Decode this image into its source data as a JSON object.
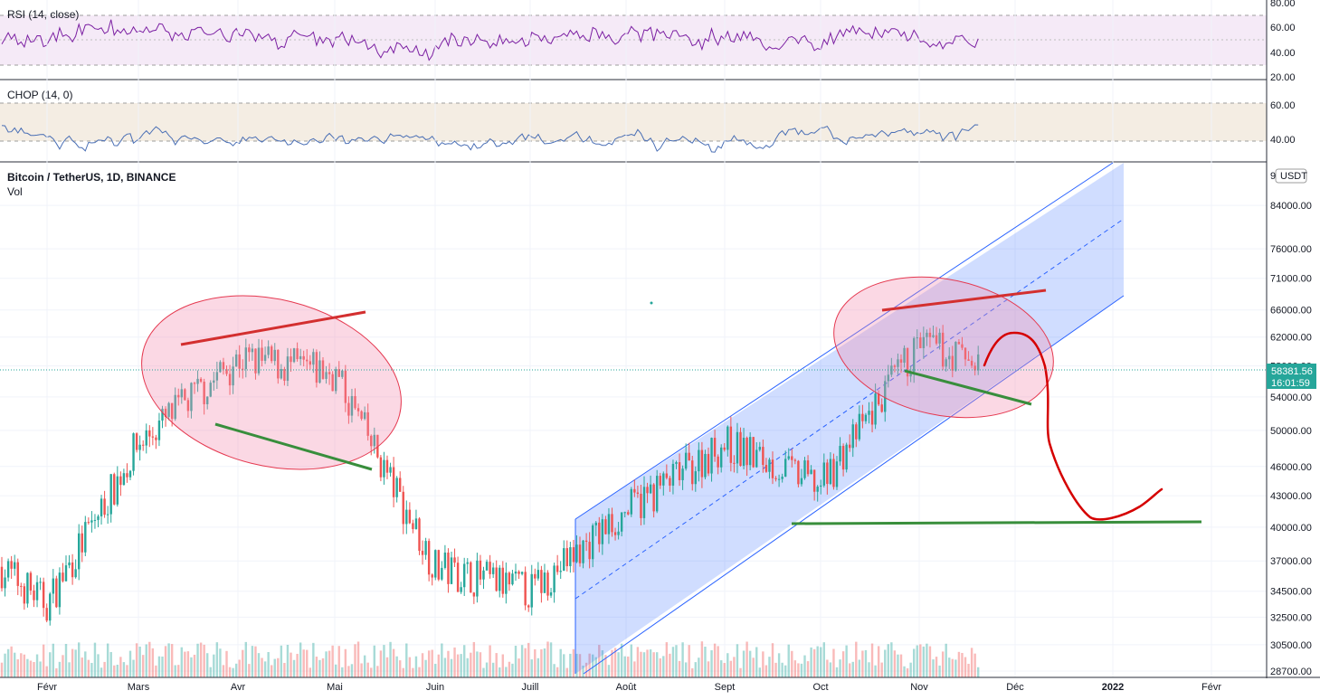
{
  "panes": {
    "rsi": {
      "title": "RSI (14, close)",
      "ticks": [
        "80.00",
        "60.00",
        "40.00",
        "20.00"
      ]
    },
    "chop": {
      "title": "CHOP (14, 0)",
      "ticks": [
        "60.00",
        "40.00"
      ]
    },
    "main": {
      "title": "Bitcoin / TetherUS, 1D, BINANCE",
      "subtitle": "Vol",
      "currency": "USDT",
      "top_tick_partial": "9",
      "price_ticks": [
        "84000.00",
        "76000.00",
        "71000.00",
        "66000.00",
        "62000.00",
        "58000.00",
        "54000.00",
        "50000.00",
        "46000.00",
        "43000.00",
        "40000.00",
        "37000.00",
        "34500.00",
        "32500.00",
        "30500.00",
        "28700.00"
      ],
      "last_price": "58381.56",
      "countdown": "16:01:59"
    }
  },
  "x_axis": [
    "Févr",
    "Mars",
    "Avr",
    "Mai",
    "Juin",
    "Juill",
    "Août",
    "Sept",
    "Oct",
    "Nov",
    "Déc",
    "2022",
    "Févr"
  ],
  "colors": {
    "up": "#26a69a",
    "down": "#ef5350",
    "rsi_line": "#7b1fa2",
    "chop_line": "#2962ff",
    "channel": "#2962ff",
    "ellipse": "#e53950",
    "resistance": "#d32f2f",
    "support": "#388e3c",
    "last_price_bg": "#26a69a"
  },
  "chart_data": {
    "type": "candlestick",
    "symbol": "Bitcoin / TetherUS",
    "interval": "1D",
    "exchange": "BINANCE",
    "scale": "log",
    "ylim": [
      28700,
      90000
    ],
    "last_price": 58381.56,
    "monthly_path": [
      {
        "month": "Févr",
        "price": 33500
      },
      {
        "month": "Mars",
        "price": 48500
      },
      {
        "month": "Avr",
        "price": 59000
      },
      {
        "month": "Mai",
        "price": 57000
      },
      {
        "month": "Juin",
        "price": 36500
      },
      {
        "month": "Juill",
        "price": 34500
      },
      {
        "month": "Août",
        "price": 41500
      },
      {
        "month": "Sept",
        "price": 48500
      },
      {
        "month": "Oct",
        "price": 44000
      },
      {
        "month": "Nov",
        "price": 61000
      }
    ],
    "rsi": {
      "period": 14,
      "source": "close",
      "ylim": [
        20,
        80
      ],
      "band": [
        30,
        70
      ]
    },
    "chop": {
      "period": 14,
      "ylim": [
        30,
        70
      ],
      "band": [
        38.2,
        61.8
      ]
    }
  }
}
